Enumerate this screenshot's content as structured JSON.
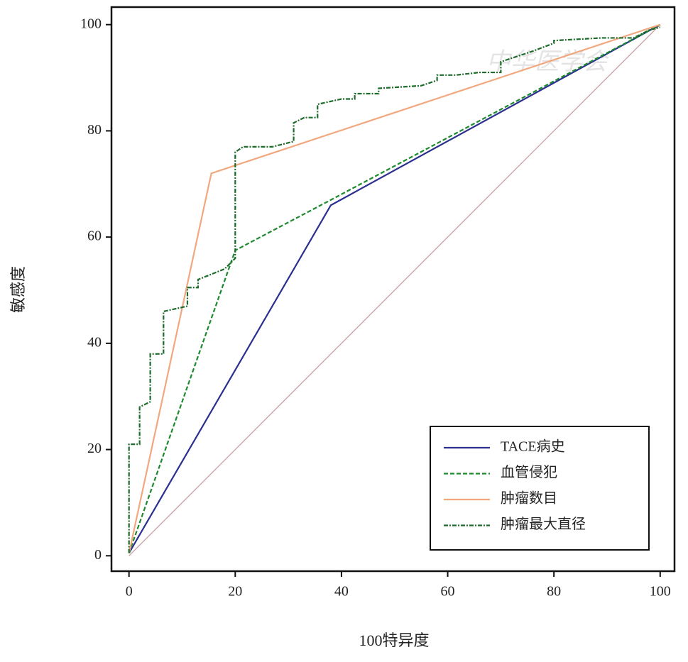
{
  "chart_data": {
    "type": "line",
    "xlabel": "100特异度",
    "ylabel": "敏感度",
    "watermark": "中华医学会",
    "xlim": [
      -3.3,
      102.7
    ],
    "ylim": [
      -2.9,
      103.3
    ],
    "xticks": [
      0,
      20,
      40,
      60,
      80,
      100
    ],
    "yticks": [
      0,
      20,
      40,
      60,
      80,
      100
    ],
    "legend": "lower right",
    "series": [
      {
        "color": "#c9a0a4",
        "style": "solid",
        "x": [
          0,
          100
        ],
        "values": [
          0,
          100
        ]
      },
      {
        "name": "TACE病史",
        "color": "#2b2f8f",
        "style": "solid",
        "x": [
          0,
          38,
          100
        ],
        "values": [
          0.5,
          66,
          100
        ]
      },
      {
        "name": "血管侵犯",
        "color": "#1e8a2e",
        "style": "dashed",
        "x": [
          0,
          20,
          38,
          100
        ],
        "values": [
          0.5,
          57.5,
          67,
          100
        ]
      },
      {
        "name": "肿瘤数目",
        "color": "#f2a77e",
        "style": "solid",
        "x": [
          0,
          15.5,
          100
        ],
        "values": [
          0.5,
          72,
          100
        ]
      },
      {
        "name": "肿瘤最大直径",
        "color": "#1f6b2c",
        "style": "dashdot",
        "x": [
          0,
          0,
          2,
          2,
          4,
          4,
          6.5,
          6.5,
          11,
          11,
          13,
          13,
          18,
          20,
          20,
          21.5,
          27,
          31,
          31,
          33,
          35.5,
          35.5,
          40,
          42.5,
          42.5,
          47,
          47,
          55,
          58,
          58,
          61.5,
          66,
          70,
          70,
          76,
          80,
          80,
          89,
          95,
          98,
          100
        ],
        "values": [
          0.5,
          21,
          21,
          28,
          29,
          38,
          38,
          46,
          47,
          50.5,
          50.5,
          52,
          54,
          56,
          76,
          77,
          77,
          78,
          81.5,
          82.5,
          82.5,
          85,
          86,
          86,
          87,
          87,
          88,
          88.5,
          89.5,
          90.5,
          90.5,
          91,
          91,
          93,
          95,
          96.5,
          97,
          97.5,
          97.5,
          99,
          99.5
        ]
      }
    ]
  }
}
